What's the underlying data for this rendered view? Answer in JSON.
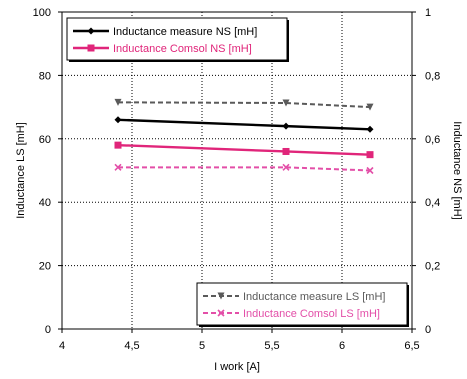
{
  "chart_data": {
    "type": "line",
    "title": "",
    "xlabel": "I work [A]",
    "ylabel": "Inductance LS [mH]",
    "y2label": "Inductance NS [mH]",
    "xlim": [
      4,
      6.5
    ],
    "ylim": [
      0,
      100
    ],
    "y2lim": [
      0,
      1
    ],
    "x_ticks": [
      "4",
      "4,5",
      "5",
      "5,5",
      "6",
      "6,5"
    ],
    "y_ticks": [
      "0",
      "20",
      "40",
      "60",
      "80",
      "100"
    ],
    "y2_ticks": [
      "0",
      "0,2",
      "0,4",
      "0,6",
      "0,8",
      "1"
    ],
    "grid": true,
    "x": [
      4.4,
      5.6,
      6.2
    ],
    "series": [
      {
        "name": "Inductance measure NS [mH]",
        "axis": "right",
        "values": [
          0.66,
          0.64,
          0.63
        ],
        "color": "#000000",
        "marker": "diamond",
        "dash": "solid"
      },
      {
        "name": "Inductance Comsol NS [mH]",
        "axis": "right",
        "values": [
          0.58,
          0.56,
          0.55
        ],
        "color": "#e0257a",
        "marker": "square",
        "dash": "solid"
      },
      {
        "name": "Inductance measure LS [mH]",
        "axis": "left",
        "values": [
          71.5,
          71.3,
          70
        ],
        "color": "#5a5a5a",
        "marker": "triangle-down",
        "dash": "dashed"
      },
      {
        "name": "Inductance Comsol LS [mH]",
        "axis": "left",
        "values": [
          51,
          51,
          50
        ],
        "color": "#e34fa8",
        "marker": "x",
        "dash": "dashed"
      }
    ],
    "legends": [
      {
        "placement": "top-left",
        "series": [
          0,
          1
        ]
      },
      {
        "placement": "bottom-right",
        "series": [
          2,
          3
        ]
      }
    ]
  }
}
